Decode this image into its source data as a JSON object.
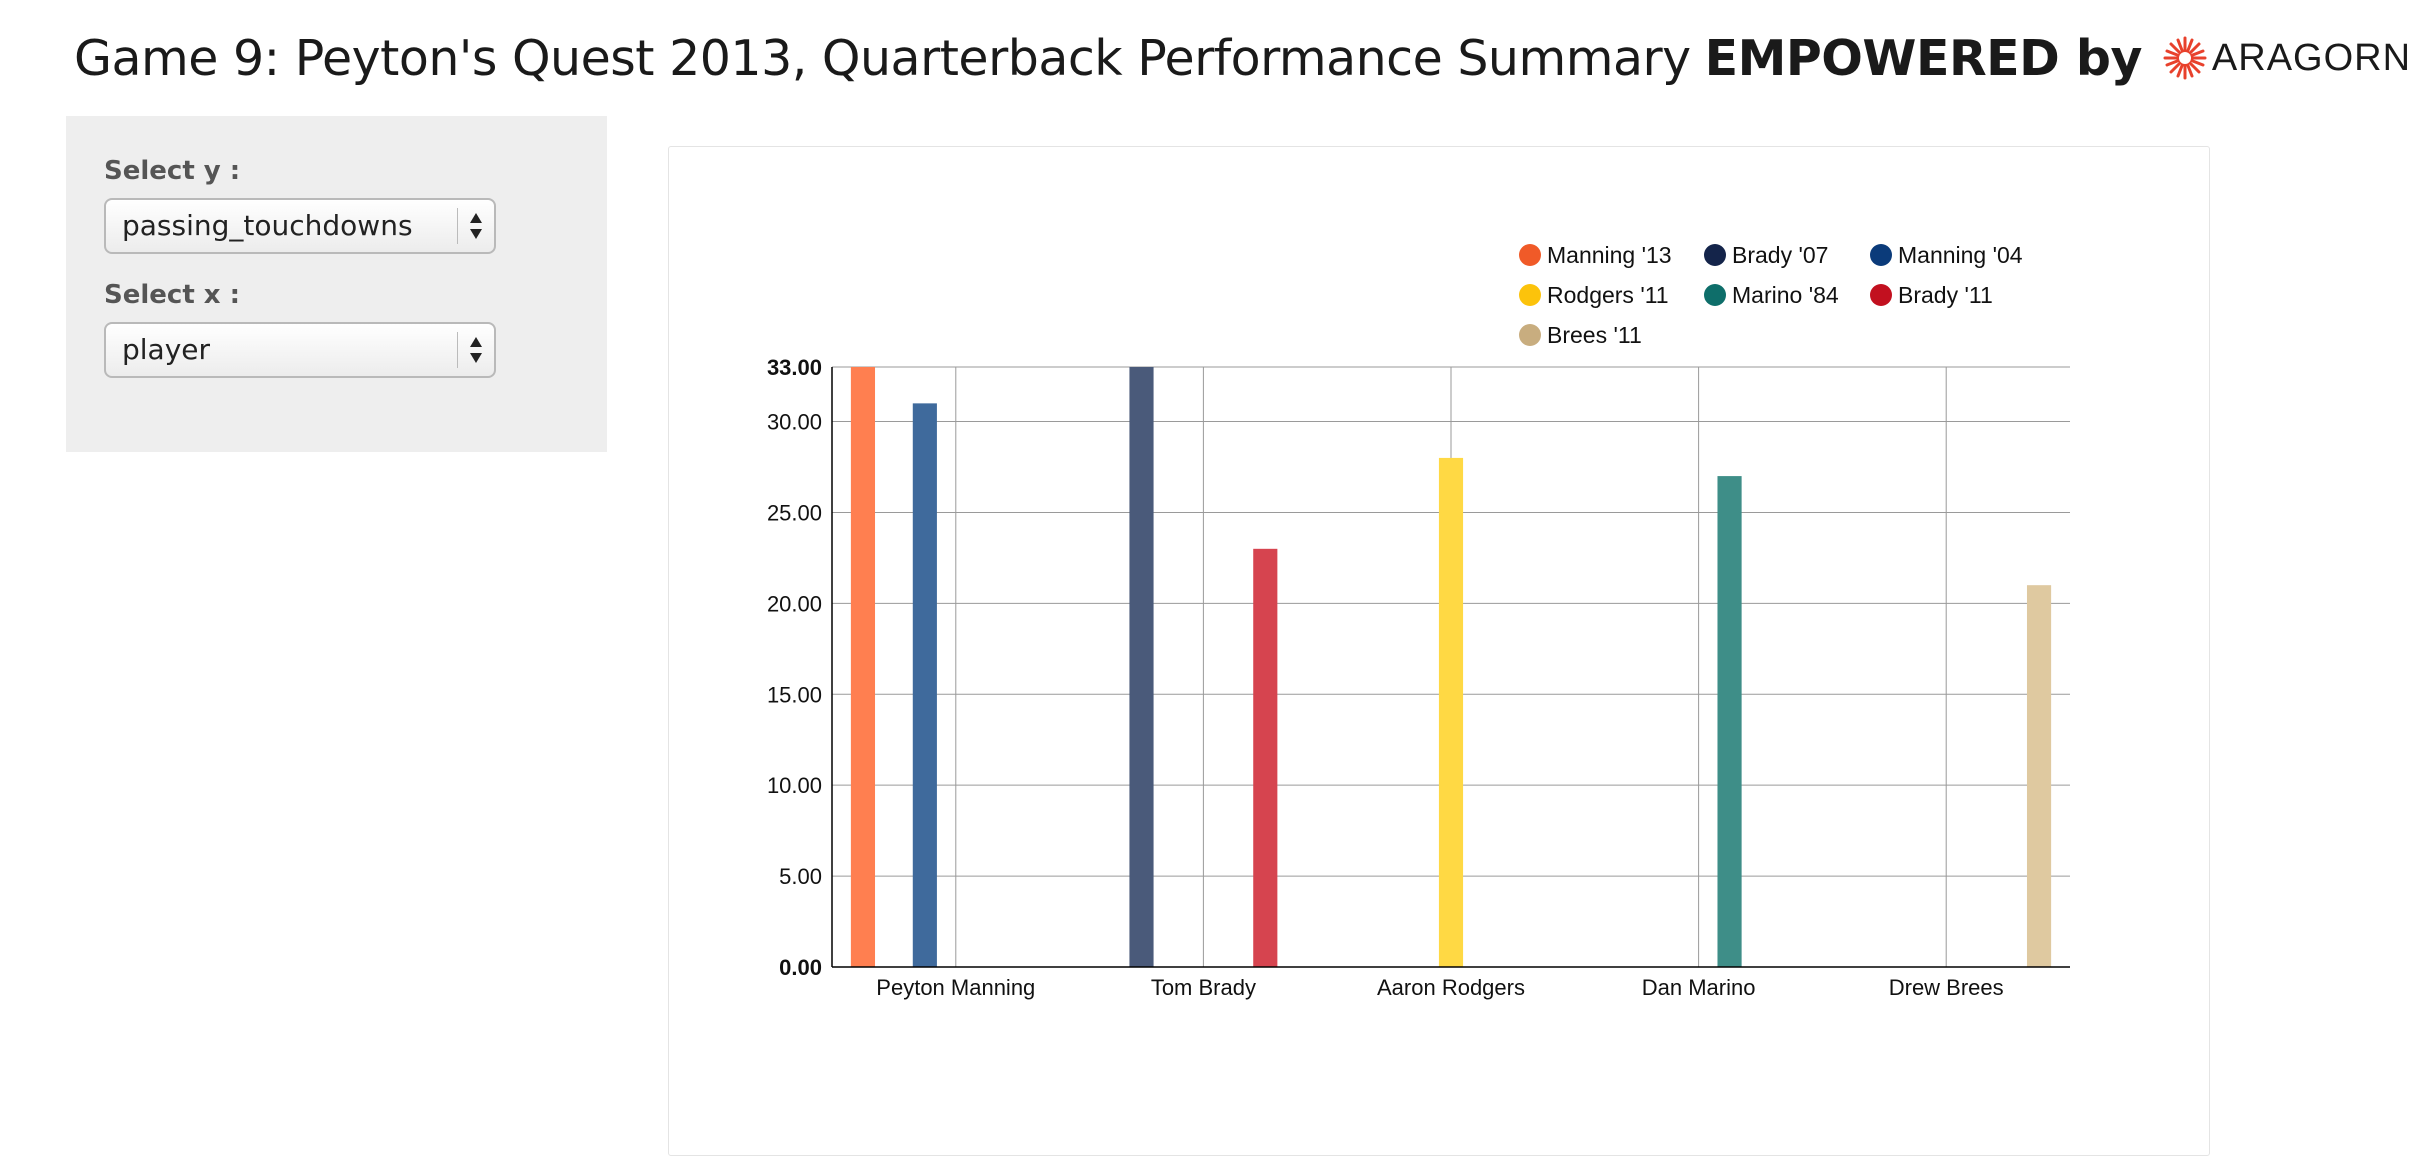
{
  "page": {
    "title_main": "Game 9: Peyton's Quest 2013, Quarterback Performance Summary",
    "title_emphasis": "EMPOWERED by",
    "logo_text": "ARAGORN",
    "logo_color": "#e8412c"
  },
  "controls": {
    "y_label": "Select y :",
    "y_value": "passing_touchdowns",
    "x_label": "Select x :",
    "x_value": "player"
  },
  "chart_data": {
    "type": "bar",
    "title": "",
    "xlabel": "",
    "ylabel": "",
    "ylim": [
      0,
      33
    ],
    "yticks": [
      "0.00",
      "5.00",
      "10.00",
      "15.00",
      "20.00",
      "25.00",
      "30.00",
      "33.00"
    ],
    "categories": [
      "Peyton Manning",
      "Tom Brady",
      "Aaron Rodgers",
      "Dan Marino",
      "Drew Brees"
    ],
    "grid": true,
    "legend_position": "top-right",
    "series": [
      {
        "name": "Manning '13",
        "legend_color": "#f05a28",
        "bar_color": "#ff7f50",
        "values": [
          33,
          null,
          null,
          null,
          null
        ]
      },
      {
        "name": "Brady '07",
        "legend_color": "#14244a",
        "bar_color": "#4a5a7a",
        "values": [
          null,
          33,
          null,
          null,
          null
        ]
      },
      {
        "name": "Manning '04",
        "legend_color": "#0b3b7a",
        "bar_color": "#3f6a9c",
        "values": [
          31,
          null,
          null,
          null,
          null
        ]
      },
      {
        "name": "Rodgers '11",
        "legend_color": "#fcc30b",
        "bar_color": "#ffd944",
        "values": [
          null,
          null,
          28,
          null,
          null
        ]
      },
      {
        "name": "Marino '84",
        "legend_color": "#0e6e6a",
        "bar_color": "#3e8e88",
        "values": [
          null,
          null,
          null,
          27,
          null
        ]
      },
      {
        "name": "Brady '11",
        "legend_color": "#c2101f",
        "bar_color": "#d6444f",
        "values": [
          null,
          23,
          null,
          null,
          null
        ]
      },
      {
        "name": "Brees '11",
        "legend_color": "#c8ad7f",
        "bar_color": "#dfc9a0",
        "values": [
          null,
          null,
          null,
          null,
          21
        ]
      }
    ]
  }
}
